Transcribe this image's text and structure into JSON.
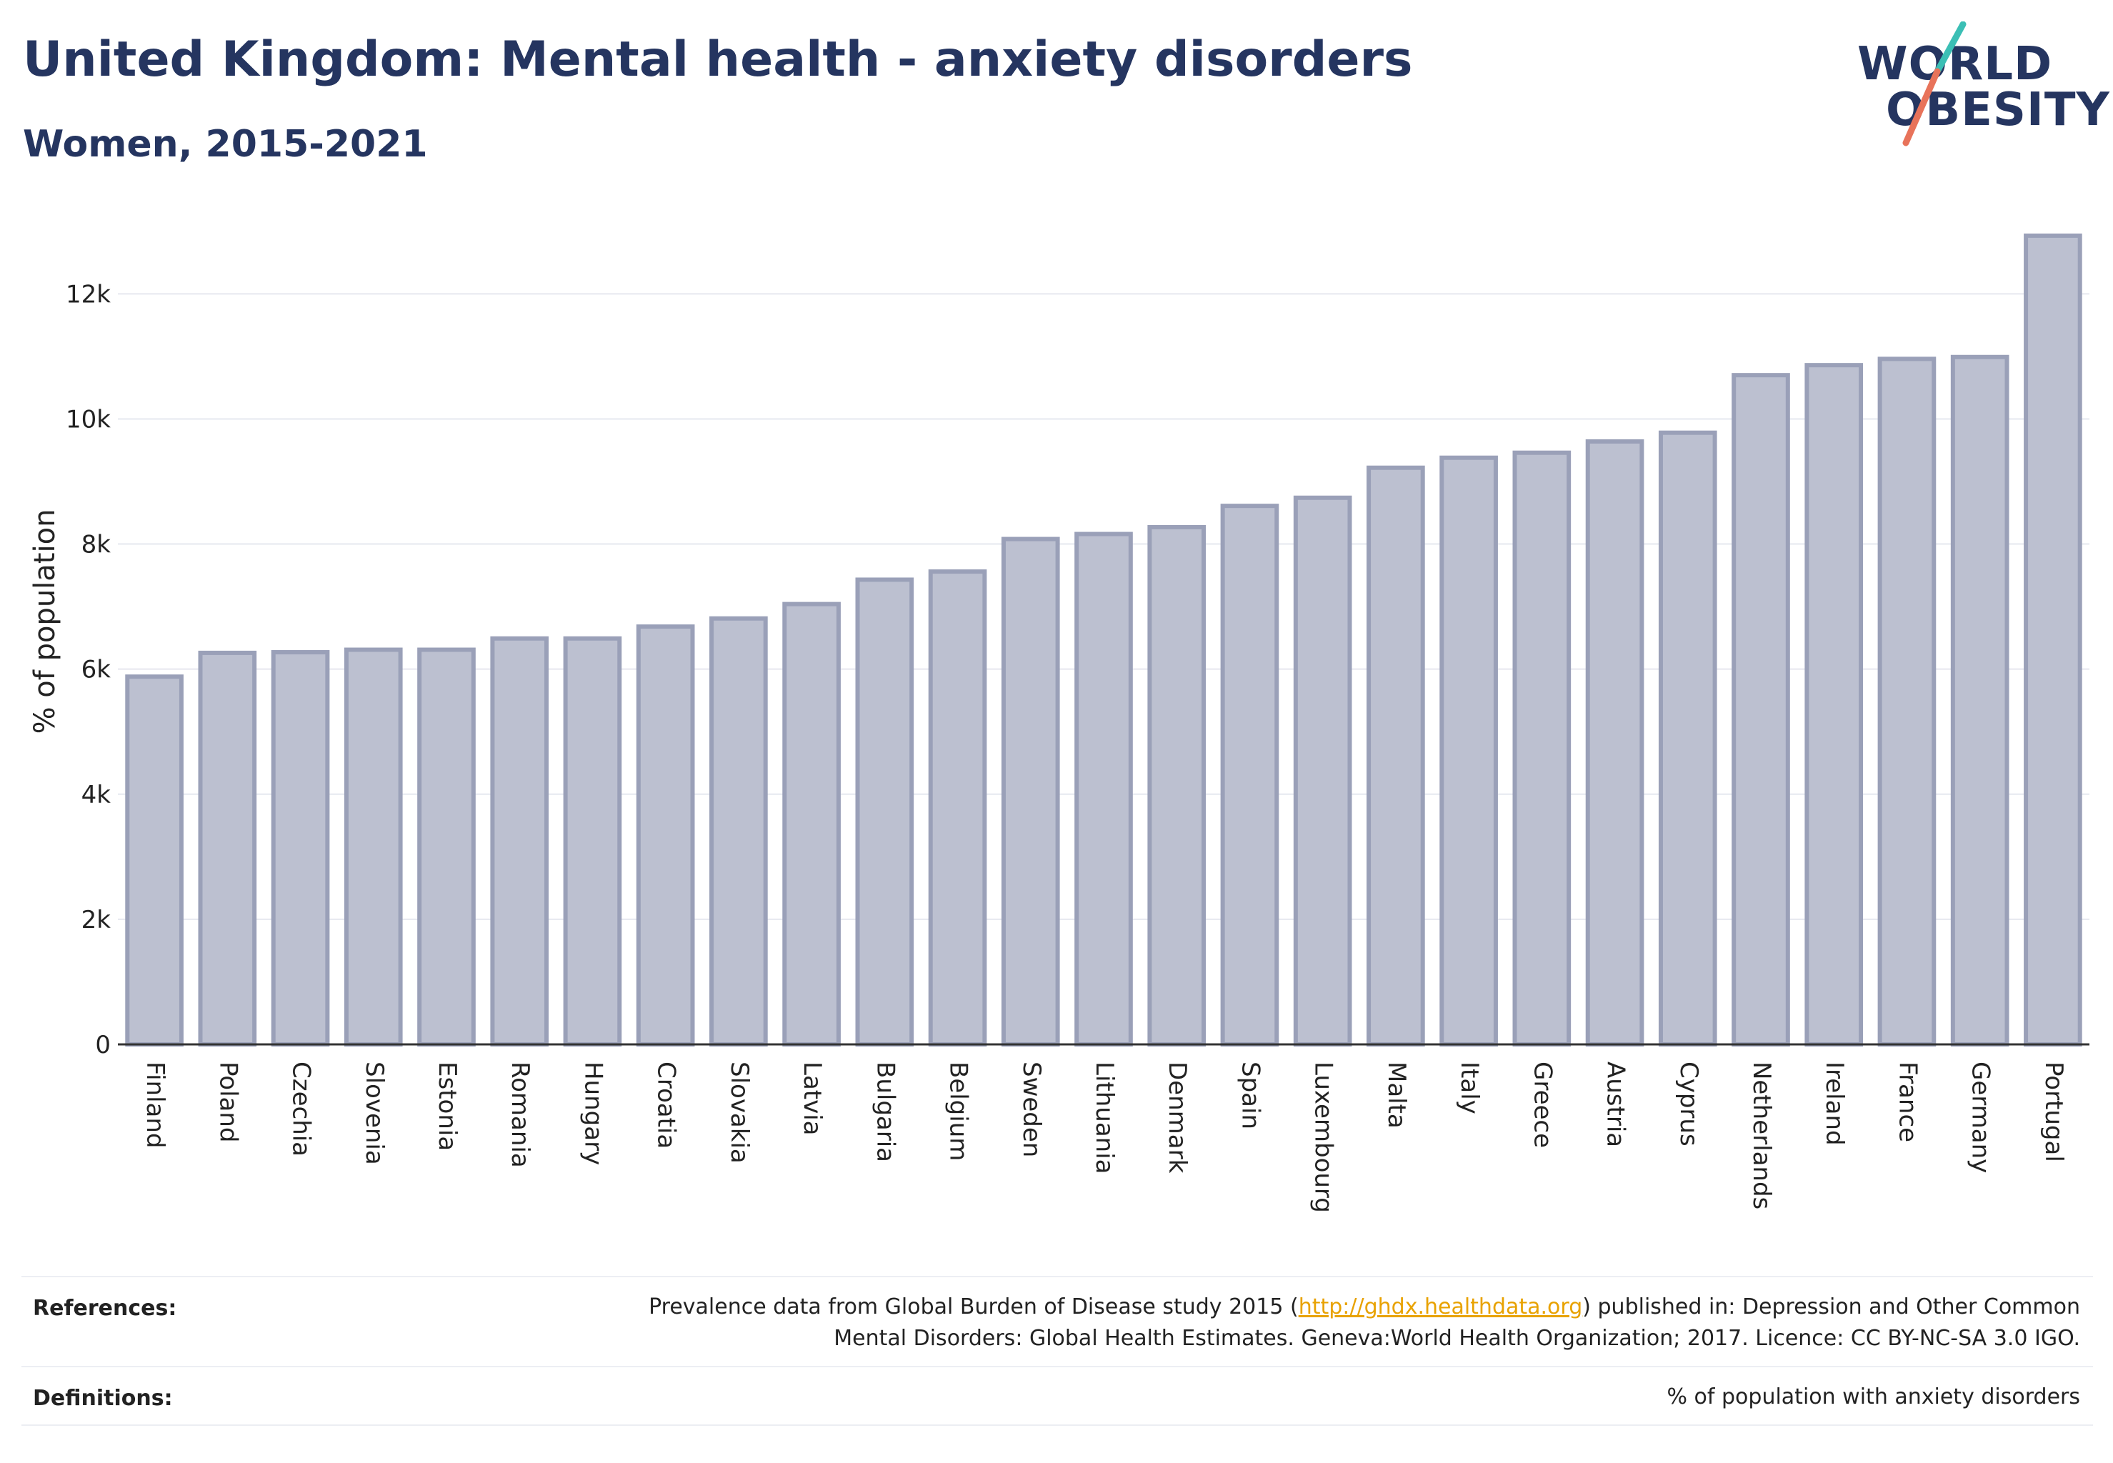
{
  "header": {
    "title": "United Kingdom: Mental health - anxiety disorders",
    "subtitle": "Women, 2015-2021"
  },
  "logo": {
    "line1": "WORLD",
    "line2": "OBESITY",
    "accent_top": "#3bbfb5",
    "accent_bottom": "#e8735a"
  },
  "chart_data": {
    "type": "bar",
    "ylabel": "% of population",
    "ylim": [
      0,
      13500
    ],
    "yticks": [
      0,
      2000,
      4000,
      6000,
      8000,
      10000,
      12000
    ],
    "ytick_labels": [
      "0",
      "2k",
      "4k",
      "6k",
      "8k",
      "10k",
      "12k"
    ],
    "grid": true,
    "bar_fill": "#bcc0d0",
    "bar_stroke": "#9aa0b8",
    "categories": [
      "Finland",
      "Poland",
      "Czechia",
      "Slovenia",
      "Estonia",
      "Romania",
      "Hungary",
      "Croatia",
      "Slovakia",
      "Latvia",
      "Bulgaria",
      "Belgium",
      "Sweden",
      "Lithuania",
      "Denmark",
      "Spain",
      "Luxembourg",
      "Malta",
      "Italy",
      "Greece",
      "Austria",
      "Cyprus",
      "Netherlands",
      "Ireland",
      "France",
      "Germany",
      "Portugal"
    ],
    "values": [
      5880,
      6260,
      6270,
      6310,
      6310,
      6490,
      6490,
      6680,
      6810,
      7040,
      7430,
      7560,
      8080,
      8160,
      8270,
      8610,
      8740,
      9220,
      9380,
      9460,
      9640,
      9780,
      10700,
      10860,
      10960,
      10990,
      12930
    ]
  },
  "footer": {
    "references_label": "References:",
    "references_line1_pre": "Prevalence data from Global Burden of Disease study 2015 (",
    "references_link": "http://ghdx.healthdata.org",
    "references_line1_post": ") published in: Depression and Other Common",
    "references_line2": "Mental Disorders: Global Health Estimates. Geneva:World Health Organization; 2017. Licence: CC BY-NC-SA 3.0 IGO.",
    "definitions_label": "Definitions:",
    "definitions_text": "% of population with anxiety disorders"
  }
}
